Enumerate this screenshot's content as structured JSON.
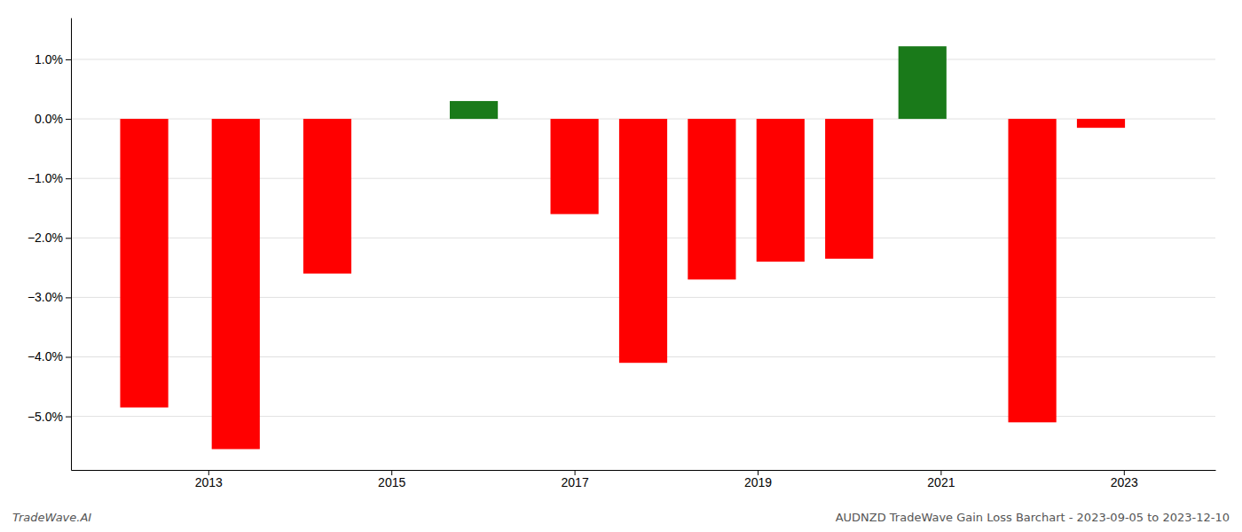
{
  "chart_data": {
    "type": "bar",
    "x": [
      2012.3,
      2013.3,
      2014.3,
      2015.9,
      2017.0,
      2017.75,
      2018.5,
      2019.25,
      2020.0,
      2020.8,
      2022.0,
      2022.75
    ],
    "values": [
      -4.85,
      -5.55,
      -2.6,
      0.3,
      -1.6,
      -4.1,
      -2.7,
      -2.4,
      -2.35,
      1.22,
      -5.1,
      -0.15
    ],
    "colors": [
      "#ff0000",
      "#ff0000",
      "#ff0000",
      "#1a7a1a",
      "#ff0000",
      "#ff0000",
      "#ff0000",
      "#ff0000",
      "#ff0000",
      "#1a7a1a",
      "#ff0000",
      "#ff0000"
    ],
    "xlim": [
      2011.5,
      2024.0
    ],
    "xticks": [
      2013,
      2015,
      2017,
      2019,
      2021,
      2023
    ],
    "ylim": [
      -5.9,
      1.7
    ],
    "yticks": [
      {
        "value": 1.0,
        "label": "1.0%"
      },
      {
        "value": 0.0,
        "label": "0.0%"
      },
      {
        "value": -1.0,
        "label": "−1.0%"
      },
      {
        "value": -2.0,
        "label": "−2.0%"
      },
      {
        "value": -3.0,
        "label": "−3.0%"
      },
      {
        "value": -4.0,
        "label": "−4.0%"
      },
      {
        "value": -5.0,
        "label": "−5.0%"
      }
    ],
    "grid": true,
    "annotations": [
      "TradeWave.AI",
      "AUDNZD TradeWave Gain Loss Barchart - 2023-09-05 to 2023-12-10"
    ]
  }
}
